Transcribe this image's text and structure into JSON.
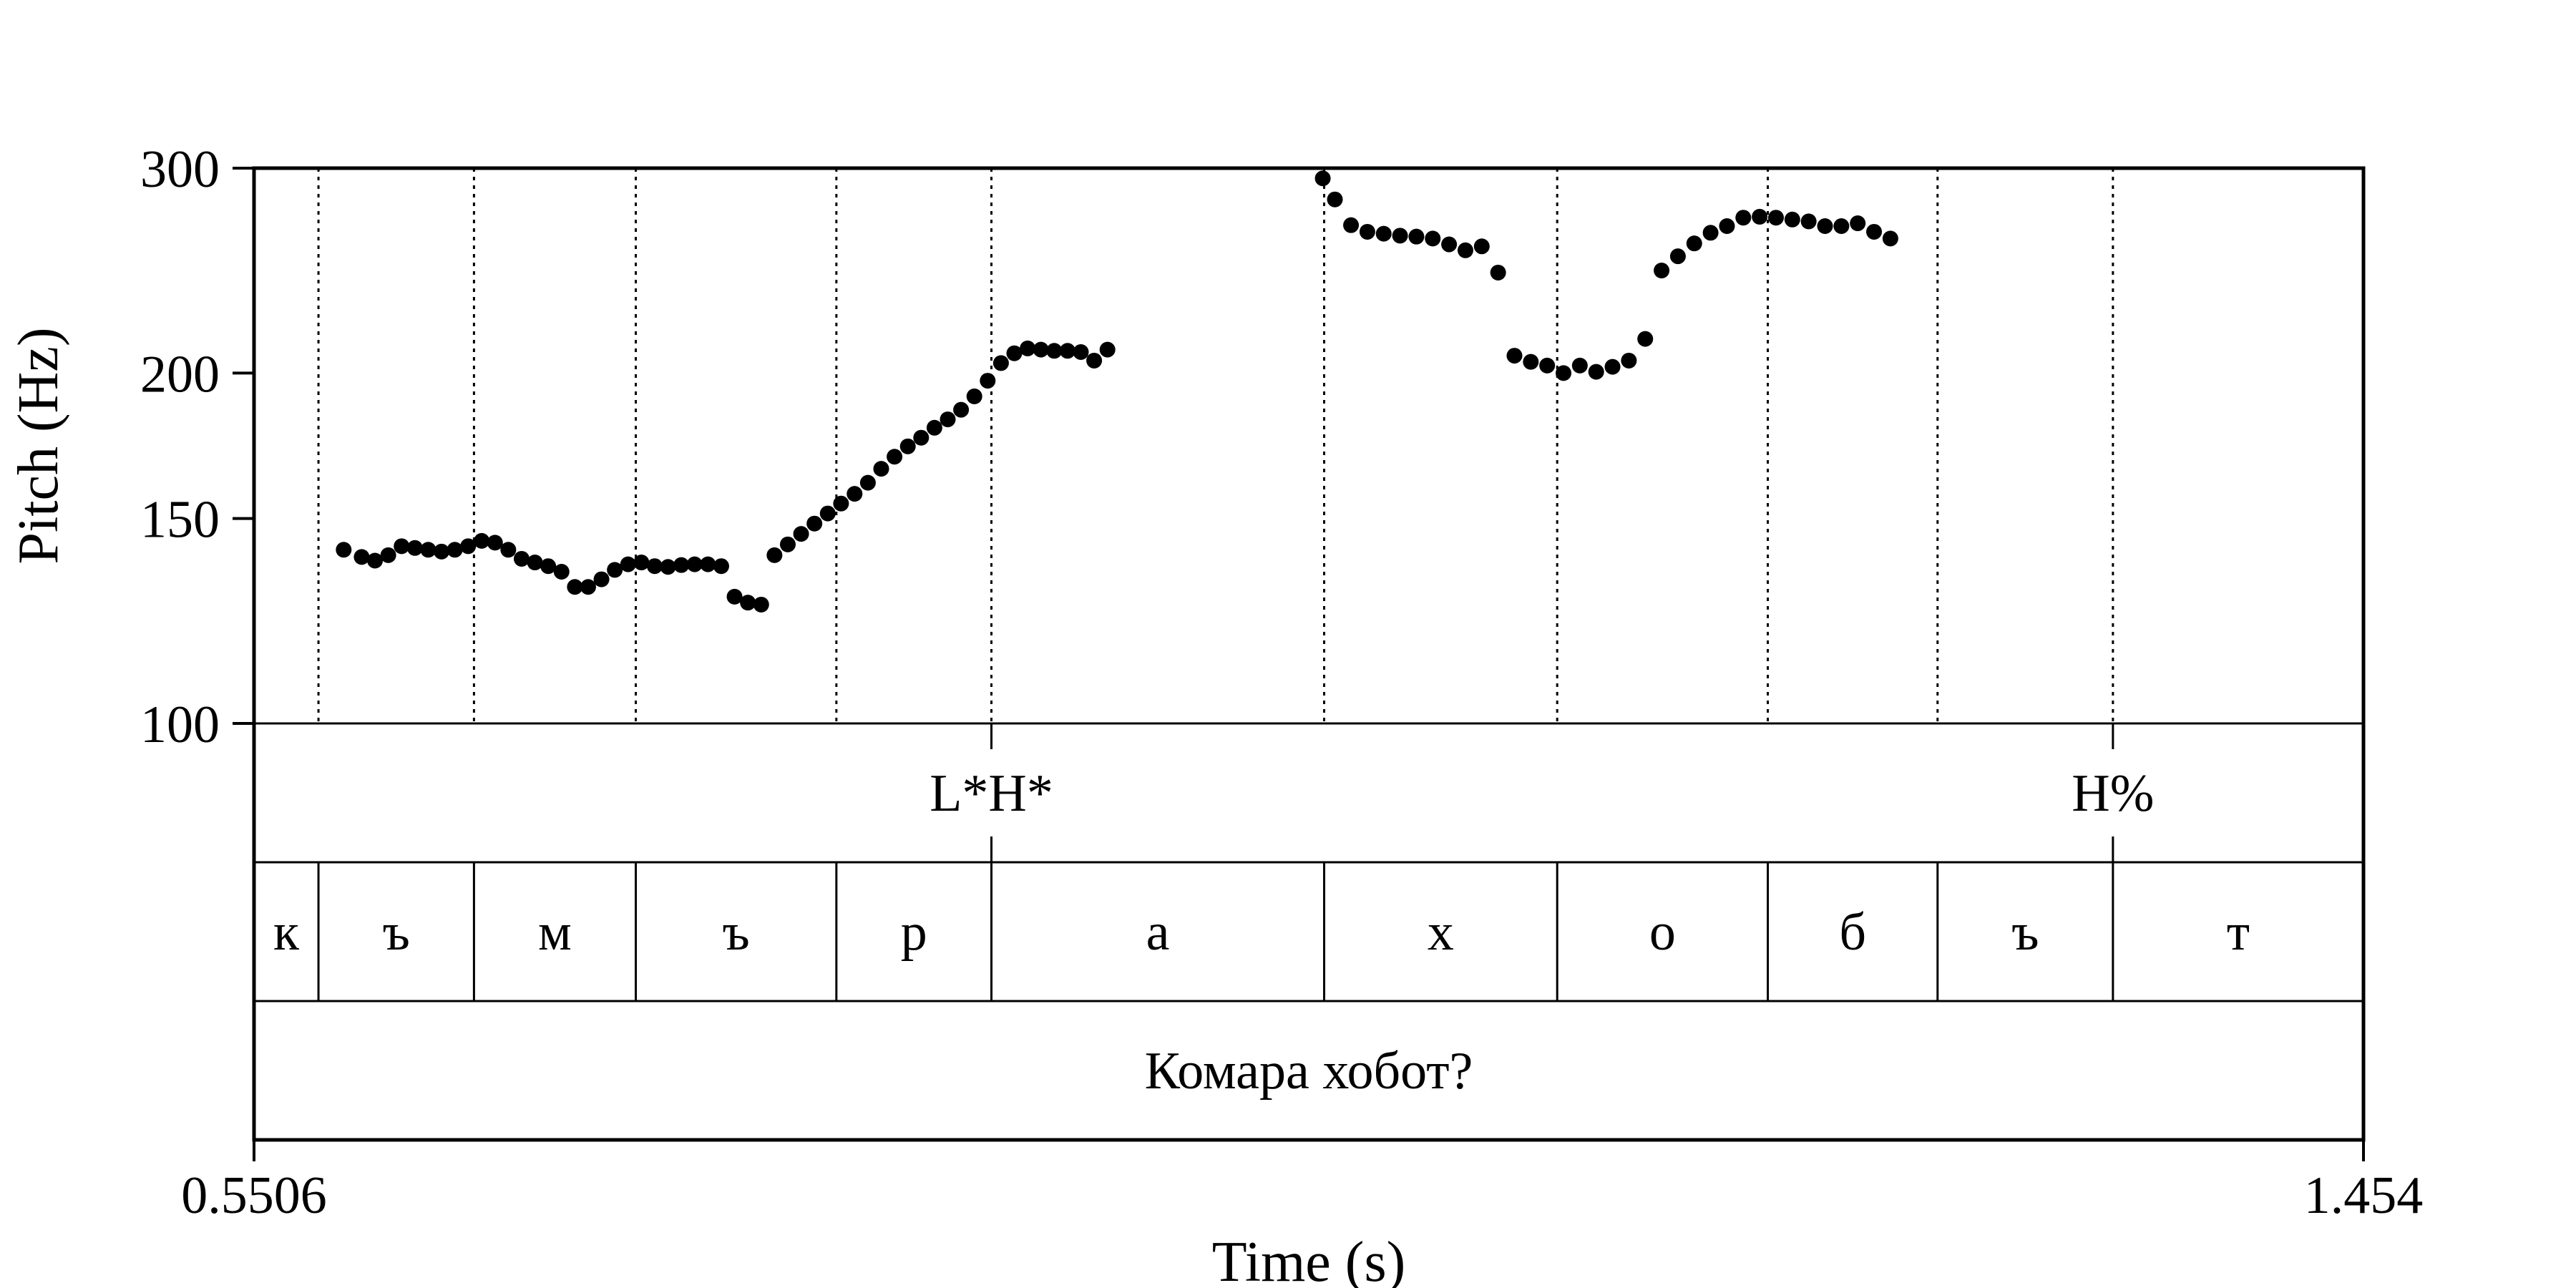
{
  "chart_data": {
    "type": "scatter",
    "title": "",
    "xlabel": "Time (s)",
    "ylabel": "Pitch (Hz)",
    "xlim": [
      0.5506,
      1.454
    ],
    "ylim": [
      100,
      300
    ],
    "y_scale": "log",
    "x_tick_labels": [
      "0.5506",
      "1.454"
    ],
    "y_ticks": [
      100,
      150,
      200,
      300
    ],
    "y_tick_labels": [
      "100",
      "150",
      "200",
      "300"
    ],
    "grid": false,
    "legend": "none",
    "colors": {
      "points": "#000000",
      "frame": "#000000",
      "background": "#ffffff"
    },
    "boundaries": [
      0.5782,
      0.6448,
      0.7141,
      0.8,
      0.8664,
      1.0089,
      1.1087,
      1.1989,
      1.2716,
      1.3467
    ],
    "tone_tier": {
      "marks": [
        {
          "time": 0.8664,
          "label": "L*H*"
        },
        {
          "time": 1.3467,
          "label": "H%"
        }
      ]
    },
    "segment_tier": {
      "segments": [
        {
          "start": 0.5506,
          "end": 0.5782,
          "label": "к"
        },
        {
          "start": 0.5782,
          "end": 0.6448,
          "label": "ъ"
        },
        {
          "start": 0.6448,
          "end": 0.7141,
          "label": "м"
        },
        {
          "start": 0.7141,
          "end": 0.8,
          "label": "ъ"
        },
        {
          "start": 0.8,
          "end": 0.8664,
          "label": "р"
        },
        {
          "start": 0.8664,
          "end": 1.0089,
          "label": "а"
        },
        {
          "start": 1.0089,
          "end": 1.1087,
          "label": "х"
        },
        {
          "start": 1.1087,
          "end": 1.1989,
          "label": "о"
        },
        {
          "start": 1.1989,
          "end": 1.2716,
          "label": "б"
        },
        {
          "start": 1.2716,
          "end": 1.3467,
          "label": "ъ"
        },
        {
          "start": 1.3467,
          "end": 1.454,
          "label": "т"
        }
      ]
    },
    "sentence_tier": {
      "segments": [
        {
          "start": 0.5506,
          "end": 1.454,
          "label": "Комара хобот?"
        }
      ]
    },
    "series": [
      {
        "points": [
          [
            0.589,
            141
          ],
          [
            0.5967,
            139
          ],
          [
            0.6024,
            138
          ],
          [
            0.6081,
            139.5
          ],
          [
            0.6138,
            142
          ],
          [
            0.6195,
            141.5
          ],
          [
            0.6252,
            141
          ],
          [
            0.6309,
            140.5
          ],
          [
            0.6366,
            141
          ],
          [
            0.6423,
            142
          ],
          [
            0.6481,
            143.5
          ],
          [
            0.6538,
            143
          ],
          [
            0.6595,
            141
          ],
          [
            0.6652,
            138.5
          ],
          [
            0.6709,
            137.5
          ],
          [
            0.6766,
            136.5
          ],
          [
            0.6823,
            135
          ],
          [
            0.688,
            131
          ],
          [
            0.6937,
            131
          ],
          [
            0.6994,
            133
          ],
          [
            0.7051,
            135.5
          ],
          [
            0.7108,
            137
          ],
          [
            0.7165,
            137.5
          ],
          [
            0.7222,
            136.5
          ],
          [
            0.7279,
            136.3
          ],
          [
            0.7336,
            136.8
          ],
          [
            0.7393,
            137
          ],
          [
            0.745,
            137
          ],
          [
            0.7507,
            136.5
          ],
          [
            0.7564,
            128.5
          ],
          [
            0.7621,
            127
          ],
          [
            0.7678,
            126.5
          ],
          [
            0.7735,
            139.5
          ],
          [
            0.7792,
            142.5
          ],
          [
            0.7849,
            145.5
          ],
          [
            0.7906,
            148.5
          ],
          [
            0.7963,
            151.5
          ],
          [
            0.802,
            154.5
          ],
          [
            0.8078,
            157.5
          ],
          [
            0.8135,
            161
          ],
          [
            0.8192,
            165.5
          ],
          [
            0.8249,
            169.5
          ],
          [
            0.8306,
            173
          ],
          [
            0.8363,
            176
          ],
          [
            0.842,
            179.5
          ],
          [
            0.8477,
            182.5
          ],
          [
            0.8534,
            186
          ],
          [
            0.8591,
            191
          ],
          [
            0.8648,
            197
          ],
          [
            0.8705,
            204
          ],
          [
            0.8762,
            208
          ],
          [
            0.8819,
            210
          ],
          [
            0.8876,
            209.5
          ],
          [
            0.8933,
            209
          ],
          [
            0.899,
            209
          ],
          [
            0.9047,
            208.5
          ],
          [
            0.9104,
            205
          ],
          [
            0.9161,
            209.5
          ],
          [
            1.0083,
            294
          ],
          [
            1.0135,
            282
          ],
          [
            1.0204,
            268
          ],
          [
            1.0274,
            264.5
          ],
          [
            1.0344,
            263.5
          ],
          [
            1.0414,
            262.5
          ],
          [
            1.0484,
            262
          ],
          [
            1.0554,
            261
          ],
          [
            1.0624,
            258
          ],
          [
            1.0694,
            255
          ],
          [
            1.0764,
            257
          ],
          [
            1.0834,
            244
          ],
          [
            1.0904,
            207
          ],
          [
            1.0974,
            204.5
          ],
          [
            1.1044,
            203
          ],
          [
            1.1114,
            200
          ],
          [
            1.1184,
            203
          ],
          [
            1.1254,
            200.5
          ],
          [
            1.1324,
            202.5
          ],
          [
            1.1394,
            205
          ],
          [
            1.1464,
            214
          ],
          [
            1.1534,
            245
          ],
          [
            1.1604,
            252
          ],
          [
            1.1674,
            258.5
          ],
          [
            1.1744,
            264
          ],
          [
            1.1814,
            267.5
          ],
          [
            1.1884,
            272
          ],
          [
            1.1954,
            272.5
          ],
          [
            1.2024,
            272
          ],
          [
            1.2094,
            271
          ],
          [
            1.2164,
            270
          ],
          [
            1.2234,
            267.5
          ],
          [
            1.2304,
            267.5
          ],
          [
            1.2374,
            269
          ],
          [
            1.2444,
            264.5
          ],
          [
            1.2514,
            261
          ]
        ]
      }
    ]
  }
}
